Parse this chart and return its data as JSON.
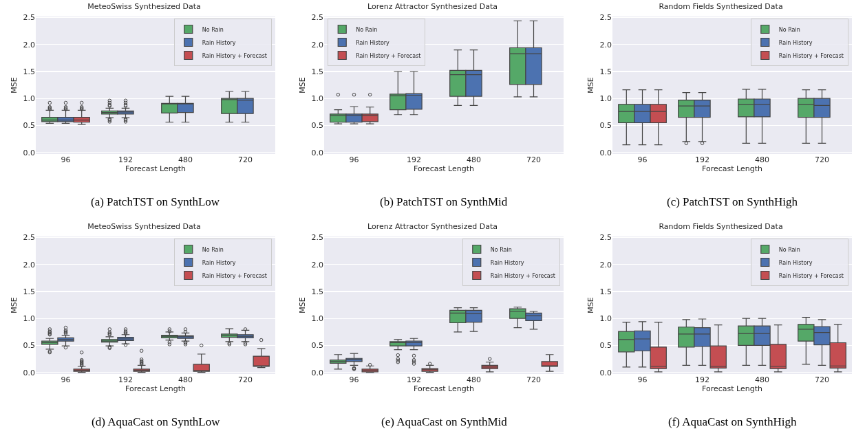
{
  "chart_data": [
    {
      "type": "box",
      "title": "MeteoSwiss Synthesized Data",
      "xlabel": "Forecast Length",
      "ylabel": "MSE",
      "categories": [
        "96",
        "192",
        "480",
        "720"
      ],
      "ylim": [
        -0.03,
        2.52
      ],
      "yticks": [
        {
          "value": 0,
          "label": "0.0"
        },
        0.5,
        {
          "value": 1,
          "label": "1.0"
        },
        1.5,
        {
          "value": 2,
          "label": "2.0"
        },
        2.5
      ],
      "grid": "y",
      "legend": "top right",
      "annotations": [
        "(a) PatchTST on SynthLow"
      ],
      "series": [
        {
          "name": "No Rain",
          "color": "#55a868",
          "boxes": [
            {
              "low": 0.54,
              "q1": 0.57,
              "median": 0.6,
              "q3": 0.65,
              "high": 0.78,
              "outliers": [
                0.8,
                0.82,
                0.84,
                0.92
              ]
            },
            {
              "low": 0.64,
              "q1": 0.71,
              "median": 0.74,
              "q3": 0.77,
              "high": 0.82,
              "outliers": [
                0.57,
                0.6,
                0.62,
                0.86,
                0.88,
                0.92,
                0.96
              ]
            },
            {
              "low": 0.56,
              "q1": 0.73,
              "median": 0.9,
              "q3": 0.91,
              "high": 1.04
            },
            {
              "low": 0.56,
              "q1": 0.72,
              "median": 0.98,
              "q3": 1.0,
              "high": 1.13
            }
          ]
        },
        {
          "name": "Rain History",
          "color": "#4c72b0",
          "boxes": [
            {
              "low": 0.54,
              "q1": 0.57,
              "median": 0.6,
              "q3": 0.65,
              "high": 0.78,
              "outliers": [
                0.8,
                0.82,
                0.84,
                0.92
              ]
            },
            {
              "low": 0.64,
              "q1": 0.71,
              "median": 0.75,
              "q3": 0.77,
              "high": 0.82,
              "outliers": [
                0.57,
                0.6,
                0.62,
                0.86,
                0.88,
                0.92,
                0.96
              ]
            },
            {
              "low": 0.56,
              "q1": 0.74,
              "median": 0.9,
              "q3": 0.91,
              "high": 1.04
            },
            {
              "low": 0.56,
              "q1": 0.72,
              "median": 0.97,
              "q3": 1.0,
              "high": 1.13
            }
          ]
        },
        {
          "name": "Rain History + Forecast",
          "color": "#c44e52",
          "boxes": [
            {
              "low": 0.52,
              "q1": 0.56,
              "median": 0.6,
              "q3": 0.65,
              "high": 0.78,
              "outliers": [
                0.8,
                0.82,
                0.84,
                0.92
              ]
            },
            null,
            null,
            null
          ]
        }
      ]
    },
    {
      "type": "box",
      "title": "Lorenz Attractor Synthesized Data",
      "xlabel": "Forecast Length",
      "ylabel": "MSE",
      "categories": [
        "96",
        "192",
        "480",
        "720"
      ],
      "ylim": [
        -0.03,
        2.52
      ],
      "yticks": [
        {
          "value": 0,
          "label": "0.0"
        },
        0.5,
        {
          "value": 1,
          "label": "1.0"
        },
        1.5,
        {
          "value": 2,
          "label": "2.0"
        },
        2.5
      ],
      "grid": "y",
      "legend": "top left",
      "annotations": [
        "(b) PatchTST on SynthMid"
      ],
      "series": [
        {
          "name": "No Rain",
          "color": "#55a868",
          "boxes": [
            {
              "low": 0.53,
              "q1": 0.56,
              "median": 0.68,
              "q3": 0.71,
              "high": 0.79,
              "outliers": [
                1.07
              ]
            },
            {
              "low": 0.7,
              "q1": 0.79,
              "median": 1.05,
              "q3": 1.08,
              "high": 1.5
            },
            {
              "low": 0.87,
              "q1": 1.04,
              "median": 1.44,
              "q3": 1.52,
              "high": 1.9
            },
            {
              "low": 1.03,
              "q1": 1.26,
              "median": 1.83,
              "q3": 1.94,
              "high": 2.44
            }
          ]
        },
        {
          "name": "Rain History",
          "color": "#4c72b0",
          "boxes": [
            {
              "low": 0.53,
              "q1": 0.56,
              "median": 0.68,
              "q3": 0.71,
              "high": 0.85,
              "outliers": [
                1.07
              ]
            },
            {
              "low": 0.7,
              "q1": 0.8,
              "median": 1.06,
              "q3": 1.09,
              "high": 1.5
            },
            {
              "low": 0.87,
              "q1": 1.04,
              "median": 1.44,
              "q3": 1.52,
              "high": 1.9
            },
            {
              "low": 1.03,
              "q1": 1.26,
              "median": 1.83,
              "q3": 1.94,
              "high": 2.44
            }
          ]
        },
        {
          "name": "Rain History + Forecast",
          "color": "#c44e52",
          "boxes": [
            {
              "low": 0.53,
              "q1": 0.57,
              "median": 0.68,
              "q3": 0.71,
              "high": 0.84,
              "outliers": [
                1.07
              ]
            },
            null,
            null,
            null
          ]
        }
      ]
    },
    {
      "type": "box",
      "title": "Random Fields Synthesized Data",
      "xlabel": "Forecast Length",
      "ylabel": "MSE",
      "categories": [
        "96",
        "192",
        "480",
        "720"
      ],
      "ylim": [
        -0.03,
        2.52
      ],
      "yticks": [
        {
          "value": 0,
          "label": "0.0"
        },
        0.5,
        {
          "value": 1,
          "label": "1.0"
        },
        1.5,
        {
          "value": 2,
          "label": "2.0"
        },
        2.5
      ],
      "grid": "y",
      "legend": "top right",
      "annotations": [
        "(c) PatchTST on SynthHigh"
      ],
      "series": [
        {
          "name": "No Rain",
          "color": "#55a868",
          "boxes": [
            {
              "low": 0.14,
              "q1": 0.55,
              "median": 0.76,
              "q3": 0.89,
              "high": 1.16
            },
            {
              "low": 0.2,
              "q1": 0.65,
              "median": 0.86,
              "q3": 0.97,
              "high": 1.11,
              "outliers": [
                0.17
              ]
            },
            {
              "low": 0.17,
              "q1": 0.66,
              "median": 0.89,
              "q3": 0.99,
              "high": 1.17
            },
            {
              "low": 0.17,
              "q1": 0.65,
              "median": 0.89,
              "q3": 1.0,
              "high": 1.16
            }
          ]
        },
        {
          "name": "Rain History",
          "color": "#4c72b0",
          "boxes": [
            {
              "low": 0.14,
              "q1": 0.55,
              "median": 0.76,
              "q3": 0.89,
              "high": 1.16
            },
            {
              "low": 0.2,
              "q1": 0.65,
              "median": 0.86,
              "q3": 0.97,
              "high": 1.11,
              "outliers": [
                0.17
              ]
            },
            {
              "low": 0.17,
              "q1": 0.66,
              "median": 0.89,
              "q3": 0.99,
              "high": 1.17
            },
            {
              "low": 0.17,
              "q1": 0.65,
              "median": 0.87,
              "q3": 1.0,
              "high": 1.16
            }
          ]
        },
        {
          "name": "Rain History + Forecast",
          "color": "#c44e52",
          "boxes": [
            {
              "low": 0.14,
              "q1": 0.55,
              "median": 0.76,
              "q3": 0.89,
              "high": 1.16
            },
            null,
            null,
            null
          ]
        }
      ]
    },
    {
      "type": "box",
      "title": "MeteoSwiss Synthesized Data",
      "xlabel": "Forecast Length",
      "ylabel": "MSE",
      "categories": [
        "96",
        "192",
        "480",
        "720"
      ],
      "ylim": [
        -0.03,
        2.52
      ],
      "yticks": [
        {
          "value": 0,
          "label": "0.0"
        },
        0.5,
        {
          "value": 1,
          "label": "1.0"
        },
        1.5,
        {
          "value": 2,
          "label": "2.0"
        },
        2.5
      ],
      "grid": "y",
      "legend": "top right",
      "annotations": [
        "(d) AquaCast on SynthLow"
      ],
      "series": [
        {
          "name": "No Rain",
          "color": "#55a868",
          "boxes": [
            {
              "low": 0.43,
              "q1": 0.52,
              "median": 0.55,
              "q3": 0.58,
              "high": 0.63,
              "outliers": [
                0.37,
                0.39,
                0.7,
                0.72,
                0.74,
                0.76,
                0.8
              ]
            },
            {
              "low": 0.49,
              "q1": 0.56,
              "median": 0.58,
              "q3": 0.61,
              "high": 0.66,
              "outliers": [
                0.45,
                0.47,
                0.7,
                0.72,
                0.74,
                0.8
              ]
            },
            {
              "low": 0.6,
              "q1": 0.64,
              "median": 0.67,
              "q3": 0.69,
              "high": 0.75,
              "outliers": [
                0.52,
                0.56,
                0.76,
                0.8
              ]
            },
            {
              "low": 0.57,
              "q1": 0.65,
              "median": 0.68,
              "q3": 0.71,
              "high": 0.81,
              "outliers": [
                0.52,
                0.54
              ]
            }
          ]
        },
        {
          "name": "Rain History",
          "color": "#4c72b0",
          "boxes": [
            {
              "low": 0.49,
              "q1": 0.58,
              "median": 0.61,
              "q3": 0.64,
              "high": 0.69,
              "outliers": [
                0.46,
                0.72,
                0.74,
                0.76,
                0.78,
                0.83
              ]
            },
            {
              "low": 0.53,
              "q1": 0.59,
              "median": 0.62,
              "q3": 0.65,
              "high": 0.7,
              "outliers": [
                0.51,
                0.72,
                0.74,
                0.76,
                0.8
              ]
            },
            {
              "low": 0.58,
              "q1": 0.63,
              "median": 0.66,
              "q3": 0.68,
              "high": 0.73,
              "outliers": [
                0.52,
                0.55,
                0.56,
                0.75,
                0.8
              ]
            },
            {
              "low": 0.57,
              "q1": 0.64,
              "median": 0.67,
              "q3": 0.7,
              "high": 0.78,
              "outliers": [
                0.52,
                0.55,
                0.8
              ]
            }
          ]
        },
        {
          "name": "Rain History + Forecast",
          "color": "#c44e52",
          "boxes": [
            {
              "low": 0.0,
              "q1": 0.02,
              "median": 0.04,
              "q3": 0.06,
              "high": 0.11,
              "outliers": [
                0.13,
                0.15,
                0.17,
                0.19,
                0.21,
                0.23,
                0.37
              ]
            },
            {
              "low": 0.0,
              "q1": 0.02,
              "median": 0.04,
              "q3": 0.06,
              "high": 0.13,
              "outliers": [
                0.15,
                0.17,
                0.19,
                0.21,
                0.24,
                0.4
              ]
            },
            {
              "low": 0.0,
              "q1": 0.02,
              "median": 0.03,
              "q3": 0.15,
              "high": 0.34,
              "outliers": [
                0.5
              ]
            },
            {
              "low": 0.09,
              "q1": 0.11,
              "median": 0.12,
              "q3": 0.3,
              "high": 0.44,
              "outliers": [
                0.6
              ]
            }
          ]
        }
      ]
    },
    {
      "type": "box",
      "title": "Lorenz Attractor Synthesized Data",
      "xlabel": "Forecast Length",
      "ylabel": "MSE",
      "categories": [
        "96",
        "192",
        "480",
        "720"
      ],
      "ylim": [
        -0.03,
        2.52
      ],
      "yticks": [
        {
          "value": 0,
          "label": "0.0"
        },
        0.5,
        {
          "value": 1,
          "label": "1.0"
        },
        1.5,
        {
          "value": 2,
          "label": "2.0"
        },
        2.5
      ],
      "grid": "y",
      "legend": "top right",
      "annotations": [
        "(e) AquaCast on SynthMid"
      ],
      "series": [
        {
          "name": "No Rain",
          "color": "#55a868",
          "boxes": [
            {
              "low": 0.06,
              "q1": 0.17,
              "median": 0.2,
              "q3": 0.23,
              "high": 0.33
            },
            {
              "low": 0.42,
              "q1": 0.49,
              "median": 0.55,
              "q3": 0.57,
              "high": 0.61,
              "outliers": [
                0.19,
                0.22,
                0.25,
                0.32
              ]
            },
            {
              "low": 0.75,
              "q1": 0.92,
              "median": 1.1,
              "q3": 1.15,
              "high": 1.2
            },
            {
              "low": 0.83,
              "q1": 1.0,
              "median": 1.13,
              "q3": 1.18,
              "high": 1.21
            }
          ]
        },
        {
          "name": "Rain History",
          "color": "#4c72b0",
          "boxes": [
            {
              "low": 0.13,
              "q1": 0.2,
              "median": 0.24,
              "q3": 0.26,
              "high": 0.35,
              "outliers": [
                0.06,
                0.07,
                0.08
              ]
            },
            {
              "low": 0.42,
              "q1": 0.49,
              "median": 0.55,
              "q3": 0.58,
              "high": 0.63,
              "outliers": [
                0.16,
                0.2,
                0.23,
                0.31
              ]
            },
            {
              "low": 0.76,
              "q1": 0.93,
              "median": 1.09,
              "q3": 1.15,
              "high": 1.2
            },
            {
              "low": 0.8,
              "q1": 0.96,
              "median": 1.05,
              "q3": 1.1,
              "high": 1.13
            }
          ]
        },
        {
          "name": "Rain History + Forecast",
          "color": "#c44e52",
          "boxes": [
            {
              "low": 0.0,
              "q1": 0.01,
              "median": 0.04,
              "q3": 0.06,
              "high": 0.12,
              "outliers": [
                0.14
              ]
            },
            {
              "low": 0.0,
              "q1": 0.02,
              "median": 0.05,
              "q3": 0.07,
              "high": 0.13,
              "outliers": [
                0.16
              ]
            },
            {
              "low": 0.01,
              "q1": 0.07,
              "median": 0.1,
              "q3": 0.13,
              "high": 0.19,
              "outliers": [
                0.25
              ]
            },
            {
              "low": 0.02,
              "q1": 0.11,
              "median": 0.12,
              "q3": 0.2,
              "high": 0.33
            }
          ]
        }
      ]
    },
    {
      "type": "box",
      "title": "Random Fields Synthesized Data",
      "xlabel": "Forecast Length",
      "ylabel": "MSE",
      "categories": [
        "96",
        "192",
        "480",
        "720"
      ],
      "ylim": [
        -0.03,
        2.52
      ],
      "yticks": [
        {
          "value": 0,
          "label": "0.0"
        },
        0.5,
        {
          "value": 1,
          "label": "1.0"
        },
        1.5,
        {
          "value": 2,
          "label": "2.0"
        },
        2.5
      ],
      "grid": "y",
      "legend": "top right",
      "annotations": [
        "(f) AquaCast on SynthHigh"
      ],
      "series": [
        {
          "name": "No Rain",
          "color": "#55a868",
          "boxes": [
            {
              "low": 0.1,
              "q1": 0.38,
              "median": 0.61,
              "q3": 0.76,
              "high": 0.93
            },
            {
              "low": 0.13,
              "q1": 0.47,
              "median": 0.71,
              "q3": 0.84,
              "high": 0.98
            },
            {
              "low": 0.13,
              "q1": 0.5,
              "median": 0.72,
              "q3": 0.86,
              "high": 1.0
            },
            {
              "low": 0.15,
              "q1": 0.58,
              "median": 0.8,
              "q3": 0.89,
              "high": 1.02
            }
          ]
        },
        {
          "name": "Rain History",
          "color": "#4c72b0",
          "boxes": [
            {
              "low": 0.1,
              "q1": 0.4,
              "median": 0.62,
              "q3": 0.77,
              "high": 0.94
            },
            {
              "low": 0.13,
              "q1": 0.48,
              "median": 0.71,
              "q3": 0.83,
              "high": 0.99
            },
            {
              "low": 0.13,
              "q1": 0.5,
              "median": 0.72,
              "q3": 0.86,
              "high": 1.0
            },
            {
              "low": 0.13,
              "q1": 0.51,
              "median": 0.74,
              "q3": 0.85,
              "high": 0.98
            }
          ]
        },
        {
          "name": "Rain History + Forecast",
          "color": "#c44e52",
          "boxes": [
            {
              "low": 0.01,
              "q1": 0.07,
              "median": 0.11,
              "q3": 0.47,
              "high": 0.93
            },
            {
              "low": 0.01,
              "q1": 0.08,
              "median": 0.11,
              "q3": 0.49,
              "high": 0.88
            },
            {
              "low": 0.01,
              "q1": 0.07,
              "median": 0.11,
              "q3": 0.52,
              "high": 0.88
            },
            {
              "low": 0.01,
              "q1": 0.08,
              "median": 0.12,
              "q3": 0.55,
              "high": 0.89
            }
          ]
        }
      ]
    }
  ]
}
